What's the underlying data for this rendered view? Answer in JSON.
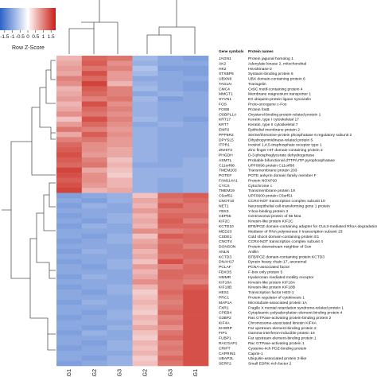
{
  "chart_data": {
    "type": "heatmap",
    "colorscale": {
      "low": "#2e62c8",
      "mid": "#ffffff",
      "high": "#c81e14",
      "ticks": [
        "-1.5",
        "-1",
        "-0.5",
        "0",
        "0.5",
        "1",
        "1.5"
      ],
      "label": "Row Z-Score",
      "range": [
        -1.8,
        1.8
      ]
    },
    "columns": [
      "LG1",
      "LG2",
      "LG3",
      "mLG2",
      "mLG3",
      "mLG1"
    ],
    "header_genes": "Gene symbols",
    "header_proteins": "Protein names",
    "rows": [
      {
        "gene": "JAGN1",
        "protein": "Protein jagunal homolog 1",
        "z": [
          0.6,
          1.2,
          1.1,
          -0.8,
          -1.0,
          -1.1
        ]
      },
      {
        "gene": "AK2",
        "protein": "Adenylate kinase 2, mitochondrial",
        "z": [
          0.7,
          1.3,
          0.9,
          -0.9,
          -1.0,
          -1.0
        ]
      },
      {
        "gene": "HK2",
        "protein": "Hexokinase-2",
        "z": [
          0.8,
          1.1,
          1.0,
          -0.7,
          -1.1,
          -1.1
        ]
      },
      {
        "gene": "STXBP6",
        "protein": "Syntaxin-binding protein 6",
        "z": [
          0.7,
          1.4,
          0.8,
          -0.8,
          -1.0,
          -1.1
        ]
      },
      {
        "gene": "UBXN6",
        "protein": "UBX domain-containing protein 6",
        "z": [
          1.0,
          1.2,
          0.8,
          -1.0,
          -1.0,
          -1.0
        ]
      },
      {
        "gene": "TAGLN",
        "protein": "Transgelin",
        "z": [
          0.9,
          1.5,
          0.6,
          -0.9,
          -1.0,
          -1.1
        ]
      },
      {
        "gene": "CMC4",
        "protein": "Cx9C motif-containing protein 4",
        "z": [
          0.6,
          1.3,
          1.0,
          -0.8,
          -1.0,
          -1.1
        ]
      },
      {
        "gene": "MMGT1",
        "protein": "Membrane magnesium transporter 1",
        "z": [
          0.7,
          1.2,
          1.0,
          -1.0,
          -0.9,
          -1.0
        ]
      },
      {
        "gene": "SYVN1",
        "protein": "E3 ubiquitin-protein ligase synoviolin",
        "z": [
          0.8,
          1.0,
          1.1,
          -0.8,
          -1.1,
          -1.0
        ]
      },
      {
        "gene": "FOS",
        "protein": "Proto-oncogene c-Fos",
        "z": [
          0.6,
          1.4,
          0.9,
          -0.9,
          -1.0,
          -1.0
        ]
      },
      {
        "gene": "FOSB",
        "protein": "Protein fosB",
        "z": [
          0.7,
          1.2,
          1.0,
          -0.9,
          -1.0,
          -1.0
        ]
      },
      {
        "gene": "OSBPL1A",
        "protein": "Oxysterol-binding protein-related protein 1",
        "z": [
          0.9,
          1.1,
          0.9,
          -0.9,
          -1.0,
          -1.0
        ]
      },
      {
        "gene": "KRT17",
        "protein": "Keratin, type I cytoskeletal 17",
        "z": [
          0.5,
          1.4,
          1.0,
          -0.8,
          -1.0,
          -1.1
        ]
      },
      {
        "gene": "KRT7",
        "protein": "Keratin, type II cytoskeletal 7",
        "z": [
          0.8,
          1.2,
          0.9,
          -1.0,
          -0.9,
          -1.0
        ]
      },
      {
        "gene": "EMP2",
        "protein": "Epithelial membrane protein 2",
        "z": [
          1.1,
          1.0,
          0.8,
          -0.9,
          -1.0,
          -1.0
        ]
      },
      {
        "gene": "PPP6R2",
        "protein": "Serine/threonine-protein phosphatase 6 regulatory subunit 2",
        "z": [
          0.7,
          1.3,
          0.9,
          -0.9,
          -1.0,
          -1.0
        ]
      },
      {
        "gene": "DPYSL5",
        "protein": "Dihydropyrimidinase-related protein 5",
        "z": [
          1.0,
          1.1,
          0.8,
          -0.9,
          -1.0,
          -1.0
        ]
      },
      {
        "gene": "ITPR1",
        "protein": "Inositol 1,4,5-trisphosphate receptor type 1",
        "z": [
          1.2,
          0.9,
          0.8,
          -0.9,
          -1.0,
          -1.0
        ]
      },
      {
        "gene": "ZNHIT2",
        "protein": "Zinc finger HIT domain-containing protein 2",
        "z": [
          1.3,
          0.9,
          0.7,
          -0.9,
          -1.0,
          -1.0
        ]
      },
      {
        "gene": "PHGDH",
        "protein": "D-3-phosphoglycerate dehydrogenase",
        "z": [
          1.4,
          0.8,
          0.7,
          -0.9,
          -1.0,
          -1.0
        ]
      },
      {
        "gene": "ASMTL",
        "protein": "Probable bifunctional dTTP/UTP pyrophosphatase",
        "z": [
          1.3,
          1.0,
          0.5,
          -0.9,
          -1.0,
          -0.9
        ]
      },
      {
        "gene": "C11orf68",
        "protein": "UPF0696 protein C11orf68",
        "z": [
          1.2,
          1.1,
          0.6,
          -1.0,
          -1.0,
          -0.9
        ]
      },
      {
        "gene": "TMEM203",
        "protein": "Transmembrane protein 203",
        "z": [
          1.5,
          0.7,
          0.5,
          -0.9,
          -0.9,
          -0.9
        ]
      },
      {
        "gene": "POTEF",
        "protein": "POTE ankyrin domain family member F",
        "z": [
          1.4,
          0.9,
          0.4,
          -0.9,
          -0.9,
          -0.9
        ]
      },
      {
        "gene": "FAM114A1",
        "protein": "Protein NOXP20",
        "z": [
          1.3,
          0.9,
          0.6,
          -0.9,
          -1.0,
          -0.9
        ]
      },
      {
        "gene": "CYCS",
        "protein": "Cytochrome c",
        "z": [
          1.4,
          0.8,
          0.6,
          -0.9,
          -1.0,
          -0.9
        ]
      },
      {
        "gene": "TMEM19",
        "protein": "Transmembrane protein 19",
        "z": [
          1.5,
          0.6,
          0.7,
          -0.9,
          -1.0,
          -0.9
        ]
      },
      {
        "gene": "C5orf51",
        "protein": "UPF0600 protein C5orf51",
        "z": [
          -1.1,
          -1.0,
          -0.9,
          0.5,
          1.2,
          1.3
        ]
      },
      {
        "gene": "CNOT10",
        "protein": "CCR4-NOT transcription complex subunit 10",
        "z": [
          -1.0,
          -1.1,
          -0.9,
          0.7,
          1.1,
          1.2
        ]
      },
      {
        "gene": "NET1",
        "protein": "Neuroepithelial cell-transforming gene 1 protein",
        "z": [
          -1.1,
          -0.9,
          -1.0,
          0.6,
          1.3,
          1.1
        ]
      },
      {
        "gene": "YBX3",
        "protein": "Y-box-binding protein 3",
        "z": [
          -1.0,
          -1.0,
          -1.0,
          0.8,
          1.1,
          1.1
        ]
      },
      {
        "gene": "CEP55",
        "protein": "Centrosomal protein of 55 kDa",
        "z": [
          -1.1,
          -1.0,
          -0.9,
          0.6,
          1.2,
          1.2
        ]
      },
      {
        "gene": "KIF2C",
        "protein": "Kinesin-like protein KIF2C",
        "z": [
          -1.0,
          -1.1,
          -0.9,
          0.7,
          1.3,
          1.0
        ]
      },
      {
        "gene": "KCTD10",
        "protein": "BTB/POZ domain-containing adapter for CUL3-mediated RhoA degradation protein 3",
        "z": [
          -1.1,
          -0.9,
          -1.0,
          0.6,
          1.2,
          1.2
        ]
      },
      {
        "gene": "MED23",
        "protein": "Mediator of RNA polymerase II transcription subunit 23",
        "z": [
          -1.0,
          -1.0,
          -1.0,
          0.9,
          1.0,
          1.1
        ]
      },
      {
        "gene": "CSDE1",
        "protein": "Cold shock domain-containing protein E1",
        "z": [
          -1.0,
          -1.1,
          -0.9,
          0.5,
          1.3,
          1.2
        ]
      },
      {
        "gene": "CNOT4",
        "protein": "CCR4-NOT transcription complex subunit 4",
        "z": [
          -1.1,
          -1.0,
          -0.9,
          0.7,
          1.1,
          1.2
        ]
      },
      {
        "gene": "DONSON",
        "protein": "Protein downstream neighbor of Son",
        "z": [
          -1.0,
          -1.0,
          -1.0,
          0.8,
          1.2,
          1.0
        ]
      },
      {
        "gene": "ANLN",
        "protein": "Anillin",
        "z": [
          -1.1,
          -0.9,
          -1.0,
          0.6,
          1.2,
          1.2
        ]
      },
      {
        "gene": "KCTD3",
        "protein": "BTB/POZ domain-containing protein KCTD3",
        "z": [
          -1.0,
          -1.0,
          -1.0,
          0.7,
          1.1,
          1.2
        ]
      },
      {
        "gene": "DNAH17",
        "protein": "Dynein heavy chain 17, axonemal",
        "z": [
          -1.1,
          -1.0,
          -0.9,
          0.5,
          1.4,
          1.1
        ]
      },
      {
        "gene": "PCLAF",
        "protein": "PCNA-associated factor",
        "z": [
          -1.0,
          -1.1,
          -0.9,
          0.8,
          1.0,
          1.2
        ]
      },
      {
        "gene": "FBXO5",
        "protein": "F-box only protein 5",
        "z": [
          -1.0,
          -1.0,
          -1.0,
          0.6,
          1.2,
          1.2
        ]
      },
      {
        "gene": "HMMR",
        "protein": "Hyaluronan mediated motility receptor",
        "z": [
          -1.1,
          -0.9,
          -1.0,
          0.7,
          1.2,
          1.1
        ]
      },
      {
        "gene": "KIF18A",
        "protein": "Kinesin-like protein KIF18A",
        "z": [
          -1.0,
          -1.0,
          -1.0,
          0.9,
          1.1,
          1.0
        ]
      },
      {
        "gene": "KIF18B",
        "protein": "Kinesin-like protein KIF18B",
        "z": [
          -1.1,
          -1.0,
          -0.9,
          0.6,
          1.1,
          1.3
        ]
      },
      {
        "gene": "HES1",
        "protein": "Transcription factor HES-1",
        "z": [
          -1.0,
          -1.1,
          -0.9,
          0.4,
          1.2,
          1.4
        ]
      },
      {
        "gene": "PRC1",
        "protein": "Protein regulator of cytokinesis 1",
        "z": [
          -1.0,
          -1.0,
          -1.0,
          0.5,
          1.1,
          1.4
        ]
      },
      {
        "gene": "MAP1A",
        "protein": "Microtubule-associated protein 1A",
        "z": [
          -1.1,
          -0.9,
          -1.0,
          0.6,
          1.0,
          1.4
        ]
      },
      {
        "gene": "FXR1",
        "protein": "Fragile X mental retardation syndrome-related protein 1",
        "z": [
          -1.0,
          -1.0,
          -1.0,
          0.5,
          1.1,
          1.4
        ]
      },
      {
        "gene": "CPEB4",
        "protein": "Cytoplasmic polyadenylation element-binding protein 4",
        "z": [
          -1.0,
          -1.1,
          -0.9,
          0.4,
          1.2,
          1.4
        ]
      },
      {
        "gene": "G3BP2",
        "protein": "Ras GTPase-activating protein-binding protein 2",
        "z": [
          -1.1,
          -1.0,
          -0.9,
          0.6,
          1.0,
          1.4
        ]
      },
      {
        "gene": "KIF4A",
        "protein": "Chromosome-associated kinesin KIF4A",
        "z": [
          -1.0,
          -1.0,
          -1.0,
          0.5,
          1.1,
          1.4
        ]
      },
      {
        "gene": "KHSRP",
        "protein": "Far upstream element-binding protein 2",
        "z": [
          -1.0,
          -1.1,
          -0.9,
          0.7,
          0.9,
          1.4
        ]
      },
      {
        "gene": "FIP1",
        "protein": "Gamma-interferon-inducible protein 16",
        "z": [
          -1.1,
          -0.9,
          -1.0,
          0.5,
          1.1,
          1.4
        ]
      },
      {
        "gene": "FUBP1",
        "protein": "Far upstream element-binding protein 1",
        "z": [
          -1.0,
          -1.0,
          -1.0,
          0.4,
          1.2,
          1.4
        ]
      },
      {
        "gene": "RACGAP1",
        "protein": "Rac GTPase-activating protein 1",
        "z": [
          -1.0,
          -1.1,
          -0.9,
          0.6,
          1.0,
          1.4
        ]
      },
      {
        "gene": "CRIPT",
        "protein": "Cysteine-rich PDZ-binding protein",
        "z": [
          -1.1,
          -1.0,
          -0.9,
          0.5,
          1.1,
          1.4
        ]
      },
      {
        "gene": "CAPRIN1",
        "protein": "Caprin-1",
        "z": [
          -1.0,
          -1.0,
          -1.0,
          0.6,
          1.0,
          1.4
        ]
      },
      {
        "gene": "UBAP2L",
        "protein": "Ubiquitin-associated protein 2-like",
        "z": [
          -1.0,
          -1.1,
          -0.9,
          0.4,
          1.2,
          1.4
        ]
      },
      {
        "gene": "SERF2",
        "protein": "Small EDRK-rich factor 2",
        "z": [
          -1.1,
          -1.0,
          -0.9,
          0.5,
          1.1,
          1.4
        ]
      }
    ]
  }
}
